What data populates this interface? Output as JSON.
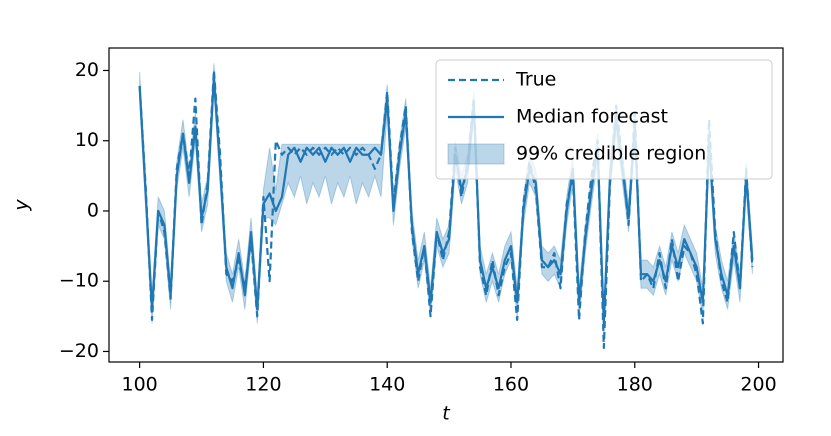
{
  "chart_data": {
    "type": "line",
    "xlabel": "t",
    "ylabel": "y",
    "x": [
      100,
      101,
      102,
      103,
      104,
      105,
      106,
      107,
      108,
      109,
      110,
      111,
      112,
      113,
      114,
      115,
      116,
      117,
      118,
      119,
      120,
      121,
      122,
      123,
      124,
      125,
      126,
      127,
      128,
      129,
      130,
      131,
      132,
      133,
      134,
      135,
      136,
      137,
      138,
      139,
      140,
      141,
      142,
      143,
      144,
      145,
      146,
      147,
      148,
      149,
      150,
      151,
      152,
      153,
      154,
      155,
      156,
      157,
      158,
      159,
      160,
      161,
      162,
      163,
      164,
      165,
      166,
      167,
      168,
      169,
      170,
      171,
      172,
      173,
      174,
      175,
      176,
      177,
      178,
      179,
      180,
      181,
      182,
      183,
      184,
      185,
      186,
      187,
      188,
      189,
      190,
      191,
      192,
      193,
      194,
      195,
      196,
      197,
      198,
      199
    ],
    "series": [
      {
        "name": "True",
        "color": "#1f77b4",
        "dash": true,
        "values": [
          17.8,
          3,
          -15.5,
          0,
          -3,
          -12.5,
          6,
          11,
          5,
          16,
          -2,
          4,
          20,
          8,
          -9,
          -10,
          -7,
          -11,
          -4,
          -15,
          2,
          -10,
          10,
          8,
          9,
          8,
          9,
          8,
          9,
          8,
          9,
          8,
          9,
          8,
          9,
          8,
          9,
          8,
          6,
          8,
          17,
          1,
          9,
          15,
          -3,
          -10,
          -5,
          -15,
          -3,
          -7,
          -3,
          9,
          2,
          7,
          16,
          -8,
          -12,
          -7,
          -12,
          -8,
          -6,
          -15.5,
          1,
          7,
          3,
          -8,
          -8,
          -6,
          -11,
          1,
          5,
          -15.5,
          -3,
          5,
          10,
          -19.5,
          4,
          15,
          7,
          -2,
          14,
          -10,
          -9,
          -11,
          -6,
          -11,
          -4,
          -10,
          -5,
          -6,
          -9,
          -16,
          13,
          -3,
          -10,
          -13,
          -3,
          -11,
          6,
          -8
        ]
      },
      {
        "name": "Median forecast",
        "color": "#1f77b4",
        "dash": false,
        "values": [
          17.8,
          2,
          -14,
          0,
          -2,
          -12,
          5,
          11,
          4,
          12,
          -1,
          3,
          19,
          6,
          -8,
          -11,
          -6,
          -12,
          -3,
          -14,
          1,
          2.5,
          0,
          2,
          8,
          9,
          7,
          9,
          8,
          9,
          7,
          9,
          8,
          9,
          7,
          9,
          8,
          8,
          9,
          8,
          16,
          0,
          8,
          14,
          -2,
          -9,
          -5,
          -13,
          -3,
          -6,
          -4,
          8,
          3,
          6,
          15,
          -7,
          -11,
          -8,
          -11,
          -7,
          -5,
          -13,
          0,
          6,
          4,
          -7,
          -8,
          -7,
          -9,
          0,
          6,
          -13,
          -4,
          3,
          9,
          -16,
          5,
          13,
          6,
          -1,
          12,
          -9,
          -9,
          -10,
          -7,
          -10,
          -5,
          -8,
          -4,
          -6,
          -8,
          -13,
          10,
          -4,
          -9,
          -12,
          -5,
          -11,
          5,
          -7
        ]
      }
    ],
    "band": {
      "name": "99% credible region",
      "color": "#1f77b4",
      "lower": [
        15.8,
        0,
        -16,
        -2,
        -4,
        -14,
        3,
        9,
        2,
        10,
        -3,
        1,
        17,
        4,
        -10,
        -13,
        -8,
        -14,
        -5,
        -16,
        -1,
        -1,
        -2,
        1,
        4,
        2,
        5,
        1,
        4,
        2,
        5,
        1,
        4,
        2,
        5,
        1,
        4,
        2,
        5,
        2,
        14,
        -2,
        6,
        12,
        -4,
        -11,
        -7,
        -15,
        -5,
        -8,
        -6,
        6,
        1,
        4,
        13,
        -9,
        -13,
        -10,
        -13,
        -9,
        -7,
        -15,
        -2,
        4,
        2,
        -9,
        -10,
        -9,
        -11,
        -2,
        4,
        -15,
        -6,
        1,
        7,
        -18,
        3,
        11,
        4,
        -3,
        10,
        -11,
        -11,
        -12,
        -9,
        -12,
        -7,
        -10,
        -6,
        -8,
        -10,
        -15,
        8,
        -6,
        -11,
        -14,
        -7,
        -13,
        3,
        -9
      ],
      "upper": [
        19.8,
        4,
        -12,
        2,
        0,
        -10,
        7,
        13,
        6,
        14,
        1,
        5,
        21,
        8,
        -6,
        -9,
        -4,
        -10,
        -1,
        -12,
        3,
        9,
        3,
        9.5,
        9.5,
        9.5,
        9.5,
        9.5,
        9.5,
        9.5,
        9.5,
        9.5,
        9.5,
        9.5,
        9.5,
        9.5,
        9.5,
        9.5,
        9.5,
        9.5,
        18,
        2,
        10,
        16,
        0,
        -7,
        -3,
        -11,
        -1,
        -4,
        -2,
        10,
        5,
        8,
        17,
        -5,
        -9,
        -6,
        -9,
        -5,
        -3,
        -11,
        2,
        8,
        6,
        -5,
        -6,
        -5,
        -7,
        2,
        8,
        -11,
        -2,
        5,
        11,
        -14,
        7,
        15,
        8,
        1,
        14,
        -7,
        -7,
        -8,
        -5,
        -8,
        -3,
        -6,
        -2,
        -4,
        -6,
        -11,
        12,
        -2,
        -7,
        -10,
        -3,
        -9,
        7,
        -5
      ]
    },
    "xlim": [
      95.05,
      203.95
    ],
    "ylim": [
      -21.5,
      23.2
    ],
    "xticks": [
      100,
      120,
      140,
      160,
      180,
      200
    ],
    "yticks": [
      {
        "value": -20,
        "label": "−20"
      },
      {
        "value": -10,
        "label": "−10"
      },
      0,
      10,
      20
    ],
    "grid": false,
    "legend": "upper right"
  }
}
